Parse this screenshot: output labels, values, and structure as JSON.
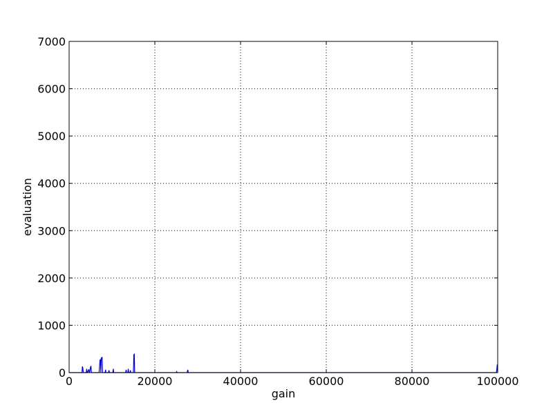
{
  "chart_data": {
    "type": "line",
    "title": "",
    "xlabel": "gain",
    "ylabel": "evaluation",
    "xlim": [
      0,
      100000
    ],
    "ylim": [
      0,
      7000
    ],
    "xticks": [
      0,
      20000,
      40000,
      60000,
      80000,
      100000
    ],
    "yticks": [
      0,
      1000,
      2000,
      3000,
      4000,
      5000,
      6000,
      7000
    ],
    "grid": true,
    "line_color": "#0000cc",
    "series": [
      {
        "x": [
          0,
          3000,
          3100,
          3200,
          3300,
          4000,
          4100,
          4200,
          4300,
          4600,
          4700,
          4800,
          5000,
          5100,
          5200,
          5400,
          7000,
          7200,
          7300,
          7400,
          7500,
          7700,
          7800,
          7900,
          8000,
          8400,
          8500,
          8600,
          9200,
          9300,
          9400,
          10200,
          10300,
          10400,
          13200,
          13300,
          13400,
          13700,
          13800,
          13900,
          14200,
          14300,
          14400,
          15000,
          15100,
          15200,
          15300,
          25000,
          25100,
          25200,
          27500,
          27600,
          27700,
          27800,
          99700,
          99800,
          99900,
          100000
        ],
        "y": [
          0,
          0,
          130,
          100,
          0,
          0,
          80,
          0,
          0,
          70,
          0,
          0,
          120,
          130,
          0,
          0,
          0,
          260,
          280,
          0,
          310,
          320,
          0,
          0,
          0,
          0,
          60,
          0,
          0,
          50,
          0,
          0,
          80,
          0,
          0,
          60,
          0,
          0,
          80,
          0,
          0,
          50,
          0,
          0,
          380,
          390,
          0,
          0,
          20,
          0,
          0,
          30,
          60,
          0,
          0,
          80,
          170,
          0
        ]
      }
    ]
  }
}
